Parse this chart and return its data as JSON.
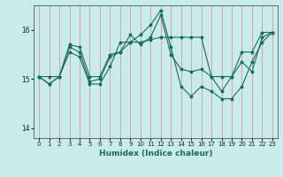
{
  "xlabel": "Humidex (Indice chaleur)",
  "xlim": [
    -0.5,
    23.5
  ],
  "ylim": [
    13.8,
    16.5
  ],
  "yticks": [
    14,
    15,
    16
  ],
  "xticks": [
    0,
    1,
    2,
    3,
    4,
    5,
    6,
    7,
    8,
    9,
    10,
    11,
    12,
    13,
    14,
    15,
    16,
    17,
    18,
    19,
    20,
    21,
    22,
    23
  ],
  "background_color": "#c8ecec",
  "grid_color": "#e88080",
  "line_color": "#1a6b5a",
  "series": [
    [
      15.05,
      15.05,
      15.05,
      15.7,
      15.65,
      15.05,
      15.05,
      15.5,
      15.55,
      15.75,
      15.75,
      15.8,
      15.85,
      15.85,
      15.85,
      15.85,
      15.85,
      15.05,
      15.05,
      15.05,
      15.55,
      15.55,
      15.95,
      15.95
    ],
    [
      15.05,
      14.9,
      15.05,
      15.65,
      15.55,
      14.95,
      15.0,
      15.45,
      15.55,
      15.9,
      15.7,
      15.85,
      16.3,
      15.5,
      15.2,
      15.15,
      15.2,
      15.05,
      14.75,
      15.05,
      15.35,
      15.15,
      15.85,
      15.95
    ],
    [
      15.05,
      14.9,
      15.05,
      15.55,
      15.45,
      14.9,
      14.9,
      15.25,
      15.75,
      15.75,
      15.9,
      16.1,
      16.4,
      15.65,
      14.85,
      14.65,
      14.85,
      14.75,
      14.6,
      14.6,
      14.85,
      15.35,
      15.75,
      15.95
    ]
  ]
}
